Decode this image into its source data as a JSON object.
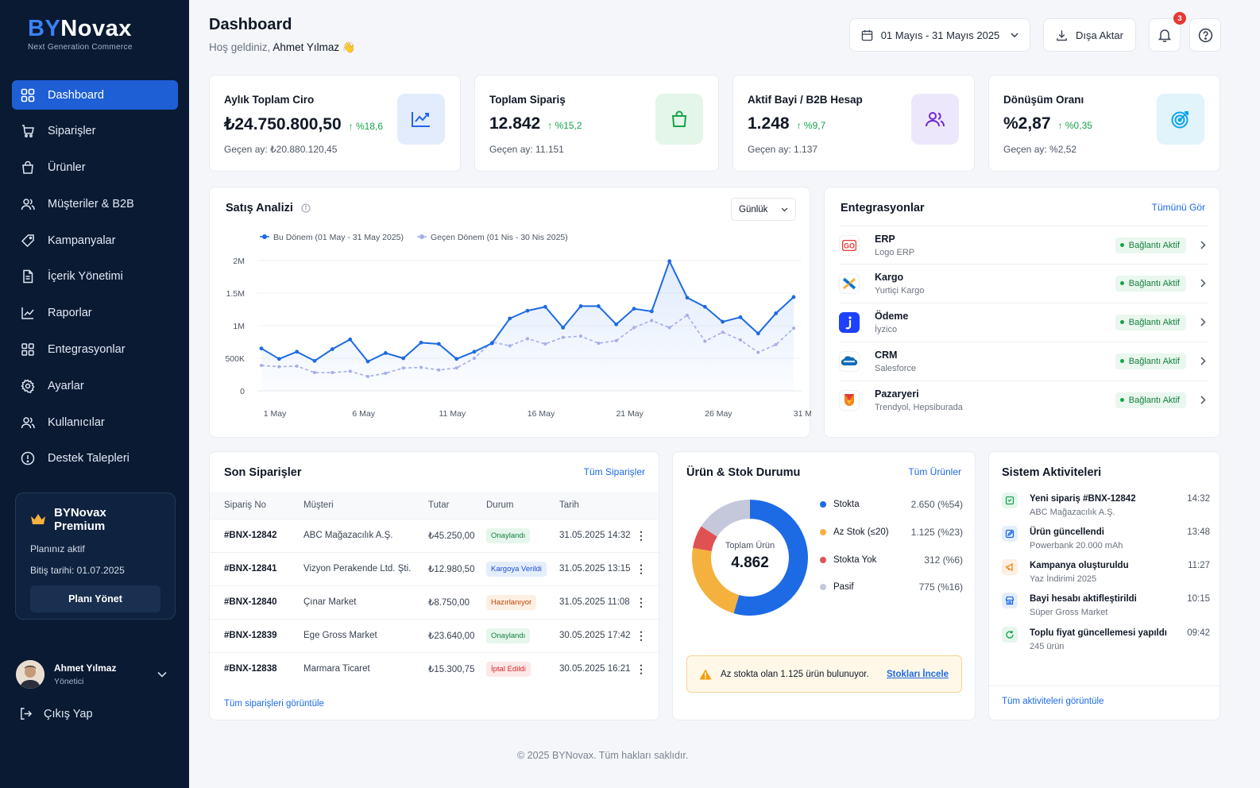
{
  "brand": {
    "logo_by": "BY",
    "logo_novax": "Novax",
    "tagline": "Next Generation Commerce"
  },
  "sidebar": {
    "items": [
      {
        "label": "Dashboard",
        "icon": "grid-icon"
      },
      {
        "label": "Siparişler",
        "icon": "cart-icon"
      },
      {
        "label": "Ürünler",
        "icon": "bag-icon"
      },
      {
        "label": "Müşteriler & B2B",
        "icon": "users-icon"
      },
      {
        "label": "Kampanyalar",
        "icon": "tag-icon"
      },
      {
        "label": "İçerik Yönetimi",
        "icon": "document-icon"
      },
      {
        "label": "Raporlar",
        "icon": "chart-icon"
      },
      {
        "label": "Entegrasyonlar",
        "icon": "blocks-icon"
      },
      {
        "label": "Ayarlar",
        "icon": "gear-icon"
      },
      {
        "label": "Kullanıcılar",
        "icon": "users-icon"
      },
      {
        "label": "Destek Talepleri",
        "icon": "alert-circle-icon"
      }
    ],
    "premium": {
      "title": "BYNovax Premium",
      "status": "Planınız aktif",
      "expiry": "Bitiş tarihi: 01.07.2025",
      "button": "Planı Yönet"
    },
    "user": {
      "name": "Ahmet Yılmaz",
      "role": "Yönetici"
    },
    "logout": "Çıkış Yap"
  },
  "header": {
    "title": "Dashboard",
    "welcome_prefix": "Hoş geldiniz,",
    "welcome_name": "Ahmet Yılmaz 👋",
    "date_range": "01 Mayıs - 31 Mayıs 2025",
    "export": "Dışa Aktar",
    "notifications": "3"
  },
  "kpis": [
    {
      "title": "Aylık Toplam Ciro",
      "value": "₺24.750.800,50",
      "delta": "%18,6",
      "prev": "Geçen ay: ₺20.880.120,45",
      "icon": "trending-up-icon",
      "icon_color": "#2563eb",
      "bg": "#e3ecfc"
    },
    {
      "title": "Toplam Sipariş",
      "value": "12.842",
      "delta": "%15,2",
      "prev": "Geçen ay: 11.151",
      "icon": "bag-icon",
      "icon_color": "#16a34a",
      "bg": "#e4f5ea"
    },
    {
      "title": "Aktif Bayi / B2B Hesap",
      "value": "1.248",
      "delta": "%9,7",
      "prev": "Geçen ay: 1.137",
      "icon": "users-icon",
      "icon_color": "#6d28d9",
      "bg": "#ede7fb"
    },
    {
      "title": "Dönüşüm Oranı",
      "value": "%2,87",
      "delta": "%0,35",
      "prev": "Geçen ay: %2,52",
      "icon": "target-icon",
      "icon_color": "#0ea5e9",
      "bg": "#e1f3fb"
    }
  ],
  "sales": {
    "title": "Satış Analizi",
    "period": "Günlük"
  },
  "chart_data": {
    "type": "line",
    "title": "Satış Analizi",
    "x": [
      "1 May",
      "2 May",
      "3 May",
      "4 May",
      "5 May",
      "6 May",
      "7 May",
      "8 May",
      "9 May",
      "10 May",
      "11 May",
      "12 May",
      "13 May",
      "14 May",
      "15 May",
      "16 May",
      "17 May",
      "18 May",
      "19 May",
      "20 May",
      "21 May",
      "22 May",
      "23 May",
      "24 May",
      "25 May",
      "26 May",
      "27 May",
      "28 May",
      "29 May",
      "30 May",
      "31 May"
    ],
    "tick_labels": [
      "1 May",
      "6 May",
      "11 May",
      "16 May",
      "21 May",
      "26 May",
      "31 May"
    ],
    "y_ticks": [
      "0",
      "500K",
      "1M",
      "1.5M",
      "2M"
    ],
    "ylim": [
      0,
      2000000
    ],
    "series": [
      {
        "name": "Bu Dönem (01 May - 31 May 2025)",
        "color": "#1d6ae5",
        "values": [
          650000,
          490000,
          600000,
          460000,
          640000,
          790000,
          450000,
          580000,
          500000,
          740000,
          720000,
          490000,
          600000,
          730000,
          1110000,
          1230000,
          1290000,
          970000,
          1300000,
          1300000,
          1020000,
          1260000,
          1220000,
          1990000,
          1430000,
          1290000,
          1060000,
          1130000,
          880000,
          1190000,
          1440000
        ]
      },
      {
        "name": "Geçen Dönem (01 Nis - 30 Nis 2025)",
        "color": "#a5aee8",
        "values": [
          390000,
          370000,
          380000,
          280000,
          280000,
          300000,
          220000,
          270000,
          350000,
          360000,
          320000,
          350000,
          500000,
          750000,
          690000,
          800000,
          720000,
          820000,
          840000,
          730000,
          770000,
          970000,
          1080000,
          970000,
          1160000,
          760000,
          900000,
          780000,
          590000,
          710000,
          960000
        ]
      }
    ],
    "grid": true,
    "legend": "top-left"
  },
  "integrations": {
    "title": "Entegrasyonlar",
    "link": "Tümünü Gör",
    "status_label": "Bağlantı Aktif",
    "items": [
      {
        "name": "ERP",
        "sub": "Logo ERP",
        "icon": "logo-erp-icon"
      },
      {
        "name": "Kargo",
        "sub": "Yurtiçi Kargo",
        "icon": "yurtici-kargo-icon"
      },
      {
        "name": "Ödeme",
        "sub": "İyzico",
        "icon": "iyzico-icon"
      },
      {
        "name": "CRM",
        "sub": "Salesforce",
        "icon": "salesforce-icon"
      },
      {
        "name": "Pazaryeri",
        "sub": "Trendyol, Hepsiburada",
        "icon": "marketplace-icon"
      }
    ]
  },
  "orders": {
    "title": "Son Siparişler",
    "link": "Tüm Siparişler",
    "columns": [
      "Sipariş No",
      "Müşteri",
      "Tutar",
      "Durum",
      "Tarih"
    ],
    "rows": [
      {
        "no": "#BNX-12842",
        "customer": "ABC Mağazacılık A.Ş.",
        "amount": "₺45.250,00",
        "status": "Onaylandı",
        "date": "31.05.2025 14:32",
        "fg": "#15803d",
        "bg": "#e6f6ec"
      },
      {
        "no": "#BNX-12841",
        "customer": "Vizyon Perakende Ltd. Şti.",
        "amount": "₺12.980,50",
        "status": "Kargoya Verildi",
        "date": "31.05.2025 13:15",
        "fg": "#1d4ed8",
        "bg": "#e5eefc"
      },
      {
        "no": "#BNX-12840",
        "customer": "Çınar Market",
        "amount": "₺8.750,00",
        "status": "Hazırlanıyor",
        "date": "31.05.2025 11:08",
        "fg": "#c2410c",
        "bg": "#fdf0e2"
      },
      {
        "no": "#BNX-12839",
        "customer": "Ege Gross Market",
        "amount": "₺23.640,00",
        "status": "Onaylandı",
        "date": "30.05.2025 17:42",
        "fg": "#15803d",
        "bg": "#e6f6ec"
      },
      {
        "no": "#BNX-12838",
        "customer": "Marmara Ticaret",
        "amount": "₺15.300,75",
        "status": "İptal Edildi",
        "date": "30.05.2025 16:21",
        "fg": "#dc2626",
        "bg": "#fde8e8"
      }
    ],
    "footer_link": "Tüm siparişleri görüntüle"
  },
  "stock": {
    "title": "Ürün & Stok Durumu",
    "link": "Tüm Ürünler",
    "center_label": "Toplam Ürün",
    "center_value": "4.862",
    "segments": [
      {
        "label": "Stokta",
        "value": "2.650 (%54)",
        "count": 2650,
        "color": "#1d6ae5"
      },
      {
        "label": "Az Stok (≤20)",
        "value": "1.125 (%23)",
        "count": 1125,
        "color": "#f5b13d"
      },
      {
        "label": "Stokta Yok",
        "value": "312 (%6)",
        "count": 312,
        "color": "#e05252"
      },
      {
        "label": "Pasif",
        "value": "775 (%16)",
        "count": 775,
        "color": "#c5c8da"
      }
    ],
    "alert_text": "Az stokta olan 1.125 ürün bulunuyor.",
    "alert_link": "Stokları İncele"
  },
  "activities": {
    "title": "Sistem Aktiviteleri",
    "items": [
      {
        "title": "Yeni sipariş #BNX-12842",
        "sub": "ABC Mağazacılık A.Ş.",
        "time": "14:32",
        "icon": "order-icon",
        "color": "#16a34a",
        "bg": "#e6f6ec"
      },
      {
        "title": "Ürün güncellendi",
        "sub": "Powerbank 20.000 mAh",
        "time": "13:48",
        "icon": "edit-icon",
        "color": "#1d6ae5",
        "bg": "#e5eefc"
      },
      {
        "title": "Kampanya oluşturuldu",
        "sub": "Yaz İndirimi 2025",
        "time": "11:27",
        "icon": "megaphone-icon",
        "color": "#ea8a1a",
        "bg": "#fdf0e2"
      },
      {
        "title": "Bayi hesabı aktifleştirildi",
        "sub": "Süper Gross Market",
        "time": "10:15",
        "icon": "store-icon",
        "color": "#1d6ae5",
        "bg": "#e5eefc"
      },
      {
        "title": "Toplu fiyat güncellemesi yapıldı",
        "sub": "245 ürün",
        "time": "09:42",
        "icon": "refresh-icon",
        "color": "#16a34a",
        "bg": "#e6f6ec"
      }
    ],
    "footer_link": "Tüm aktiviteleri görüntüle"
  },
  "footer": "© 2025 BYNovax. Tüm hakları saklıdır."
}
